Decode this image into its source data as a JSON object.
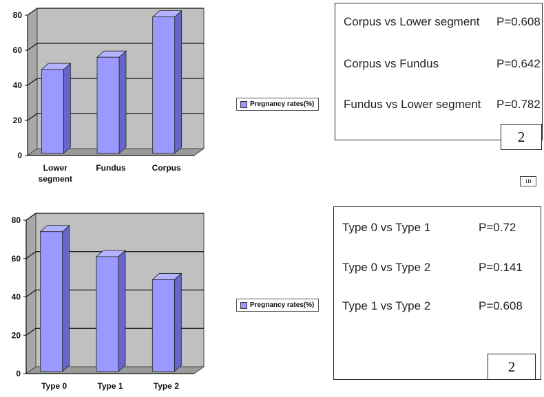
{
  "chart_data": [
    {
      "type": "bar",
      "categories": [
        "Lower segment",
        "Fundus",
        "Corpus"
      ],
      "series": [
        {
          "name": "Pregnancy rates(%)",
          "values": [
            49,
            56,
            79
          ]
        }
      ],
      "yticks": [
        0,
        20,
        40,
        60,
        80
      ],
      "ylim": [
        0,
        80
      ],
      "grid": true,
      "three_d": true
    },
    {
      "type": "bar",
      "categories": [
        "Type 0",
        "Type 1",
        "Type 2"
      ],
      "series": [
        {
          "name": "Pregnancy rates(%)",
          "values": [
            74,
            61,
            49
          ]
        }
      ],
      "yticks": [
        0,
        20,
        40,
        60,
        80
      ],
      "ylim": [
        0,
        80
      ],
      "grid": true,
      "three_d": true
    }
  ],
  "colors": {
    "bar_front": "#9999ff",
    "bar_side": "#6666cc",
    "bar_top": "#b3b3ff",
    "plot_back": "#c0c0c0"
  },
  "panel1": {
    "legend": "Pregnancy rates(%)",
    "comparisons": [
      {
        "label": "Corpus vs Lower segment",
        "p": "P=0.608"
      },
      {
        "label": "Corpus vs Fundus",
        "p": "P=0.642"
      },
      {
        "label": "Fundus vs Lower segment",
        "p": "P=0.782"
      }
    ],
    "box_number": "2",
    "tag": "1B"
  },
  "panel2": {
    "legend": "Pregnancy rates(%)",
    "comparisons": [
      {
        "label": "Type 0 vs Type 1",
        "p": "P=0.72"
      },
      {
        "label": "Type 0 vs Type 2",
        "p": "P=0.141"
      },
      {
        "label": "Type 1 vs Type 2",
        "p": "P=0.608"
      }
    ],
    "box_number": "2"
  }
}
